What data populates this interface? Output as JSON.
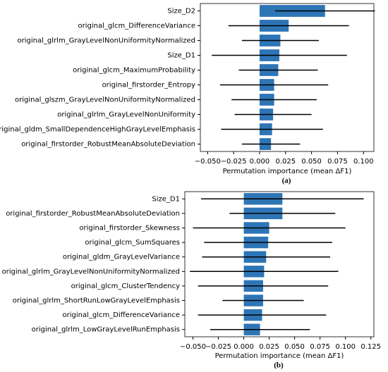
{
  "chart_data": [
    {
      "type": "barh",
      "caption": "(a)",
      "xlabel": "Permutation importance (mean ΔF1)",
      "color": "#2e75b6",
      "categories": [
        "Size_D2",
        "original_glcm_DifferenceVariance",
        "original_glrlm_GrayLevelNonUniformityNormalized",
        "Size_D1",
        "original_glcm_MaximumProbability",
        "original_firstorder_Entropy",
        "original_glszm_GrayLevelNonUniformityNormalized",
        "original_glrlm_GrayLevelNonUniformity",
        "original_gldm_SmallDependenceHighGrayLevelEmphasis",
        "original_firstorder_RobustMeanAbsoluteDeviation"
      ],
      "values": [
        0.063,
        0.028,
        0.02,
        0.019,
        0.018,
        0.014,
        0.014,
        0.013,
        0.012,
        0.011
      ],
      "errors": [
        0.048,
        0.058,
        0.037,
        0.065,
        0.038,
        0.052,
        0.041,
        0.037,
        0.049,
        0.028
      ],
      "xlim": [
        -0.057,
        0.11
      ],
      "xticks": [
        {
          "value": -0.05,
          "label": "−0.050"
        },
        {
          "value": -0.025,
          "label": "−0.025"
        },
        {
          "value": 0,
          "label": "0.000"
        },
        {
          "value": 0.025,
          "label": "0.025"
        },
        {
          "value": 0.05,
          "label": "0.050"
        },
        {
          "value": 0.075,
          "label": "0.075"
        },
        {
          "value": 0.1,
          "label": "0.100"
        }
      ]
    },
    {
      "type": "barh",
      "caption": "(b)",
      "xlabel": "Permutation importance (mean ΔF1)",
      "color": "#2e75b6",
      "categories": [
        "Size_D1",
        "original_firstorder_RobustMeanAbsoluteDeviation",
        "original_firstorder_Skewness",
        "original_glcm_SumSquares",
        "original_gldm_GrayLevelVariance",
        "original_glrlm_GrayLevelNonUniformityNormalized",
        "original_glcm_ClusterTendency",
        "original_glrlm_ShortRunLowGrayLevelEmphasis",
        "original_glcm_DifferenceVariance",
        "original_glrlm_LowGrayLevelRunEmphasis"
      ],
      "values": [
        0.038,
        0.038,
        0.025,
        0.024,
        0.022,
        0.02,
        0.019,
        0.019,
        0.018,
        0.016
      ],
      "errors": [
        0.08,
        0.052,
        0.075,
        0.063,
        0.063,
        0.073,
        0.064,
        0.04,
        0.063,
        0.049
      ],
      "xlim": [
        -0.058,
        0.128
      ],
      "xticks": [
        {
          "value": -0.05,
          "label": "−0.050"
        },
        {
          "value": -0.025,
          "label": "−0.025"
        },
        {
          "value": 0,
          "label": "0.000"
        },
        {
          "value": 0.025,
          "label": "0.025"
        },
        {
          "value": 0.05,
          "label": "0.050"
        },
        {
          "value": 0.075,
          "label": "0.075"
        },
        {
          "value": 0.1,
          "label": "0.100"
        },
        {
          "value": 0.125,
          "label": "0.125"
        }
      ]
    }
  ]
}
